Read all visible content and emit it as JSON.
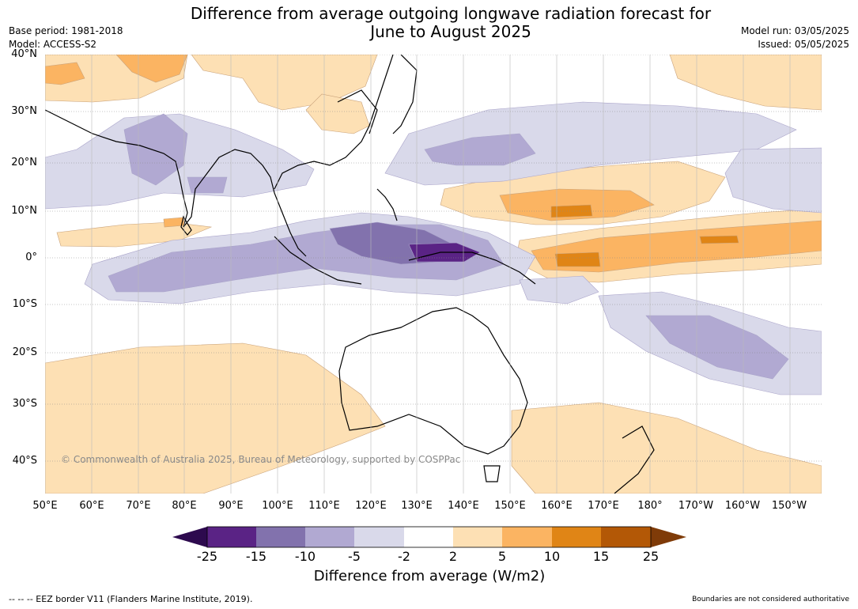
{
  "header": {
    "title_line1": "Difference from average outgoing longwave radiation forecast for",
    "title_line2": "June to August 2025",
    "base_period": "Base period: 1981-2018",
    "model": "Model: ACCESS-S2",
    "model_run": "Model run: 03/05/2025",
    "issued": "Issued: 05/05/2025"
  },
  "map": {
    "lat_labels": [
      "40°N",
      "30°N",
      "20°N",
      "10°N",
      "0°",
      "10°S",
      "20°S",
      "30°S",
      "40°S"
    ],
    "lon_labels": [
      "50°E",
      "60°E",
      "70°E",
      "80°E",
      "90°E",
      "100°E",
      "110°E",
      "120°E",
      "130°E",
      "140°E",
      "150°E",
      "160°E",
      "170°E",
      "180°",
      "170°W",
      "160°W",
      "150°W"
    ],
    "copyright": "© Commonwealth of Australia 2025, Bureau of Meteorology, supported by COSPPac"
  },
  "colorbar": {
    "title": "Difference from average (W/m2)",
    "tick_labels": [
      "-25",
      "-15",
      "-10",
      "-5",
      "-2",
      "2",
      "5",
      "10",
      "15",
      "25"
    ],
    "colors": [
      "#2d0a4e",
      "#5a2385",
      "#8272ad",
      "#b1a9d2",
      "#d9d9ea",
      "#ffffff",
      "#fde0b4",
      "#fbb462",
      "#e08516",
      "#b35806",
      "#7f3b08"
    ]
  },
  "footer": {
    "eez_note": "--  --  -- EEZ border V11 (Flanders Marine Institute, 2019).",
    "boundaries_note": "Boundaries are not considered authoritative"
  }
}
